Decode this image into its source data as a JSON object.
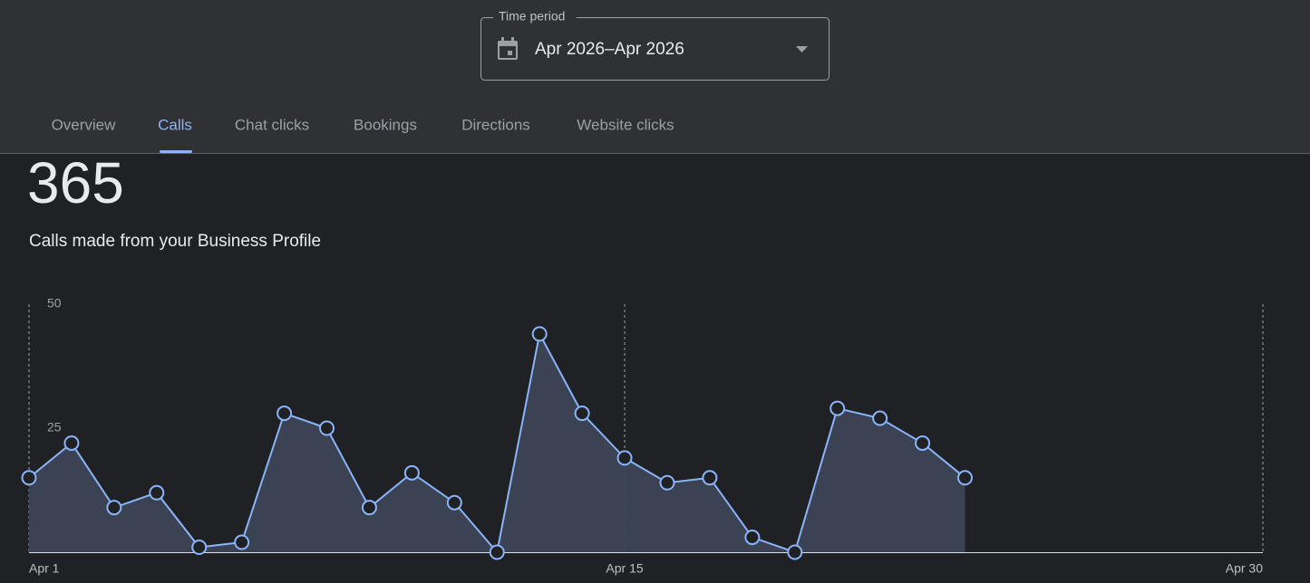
{
  "time_period": {
    "label": "Time period",
    "value": "Apr 2026–Apr 2026"
  },
  "tabs": [
    "Overview",
    "Calls",
    "Chat clicks",
    "Bookings",
    "Directions",
    "Website clicks"
  ],
  "chart_data": {
    "type": "area",
    "title": "365",
    "subtitle": "Calls made from your Business Profile",
    "x": [
      1,
      2,
      3,
      4,
      5,
      6,
      7,
      8,
      9,
      10,
      11,
      12,
      13,
      14,
      15,
      16,
      17,
      18,
      19,
      20,
      21,
      22,
      23
    ],
    "values": [
      15,
      22,
      9,
      12,
      1,
      2,
      28,
      25,
      9,
      16,
      10,
      0,
      44,
      28,
      19,
      14,
      15,
      3,
      0,
      29,
      27,
      22,
      15
    ],
    "color": "#8ab4f8",
    "xlim": [
      1,
      30
    ],
    "xticks": [
      {
        "value": 1,
        "label": "Apr 1"
      },
      {
        "value": 15,
        "label": "Apr 15"
      },
      {
        "value": 30,
        "label": "Apr 30"
      }
    ],
    "ylim": [
      0,
      50
    ],
    "yticks": [
      25,
      50
    ],
    "grid": true
  }
}
